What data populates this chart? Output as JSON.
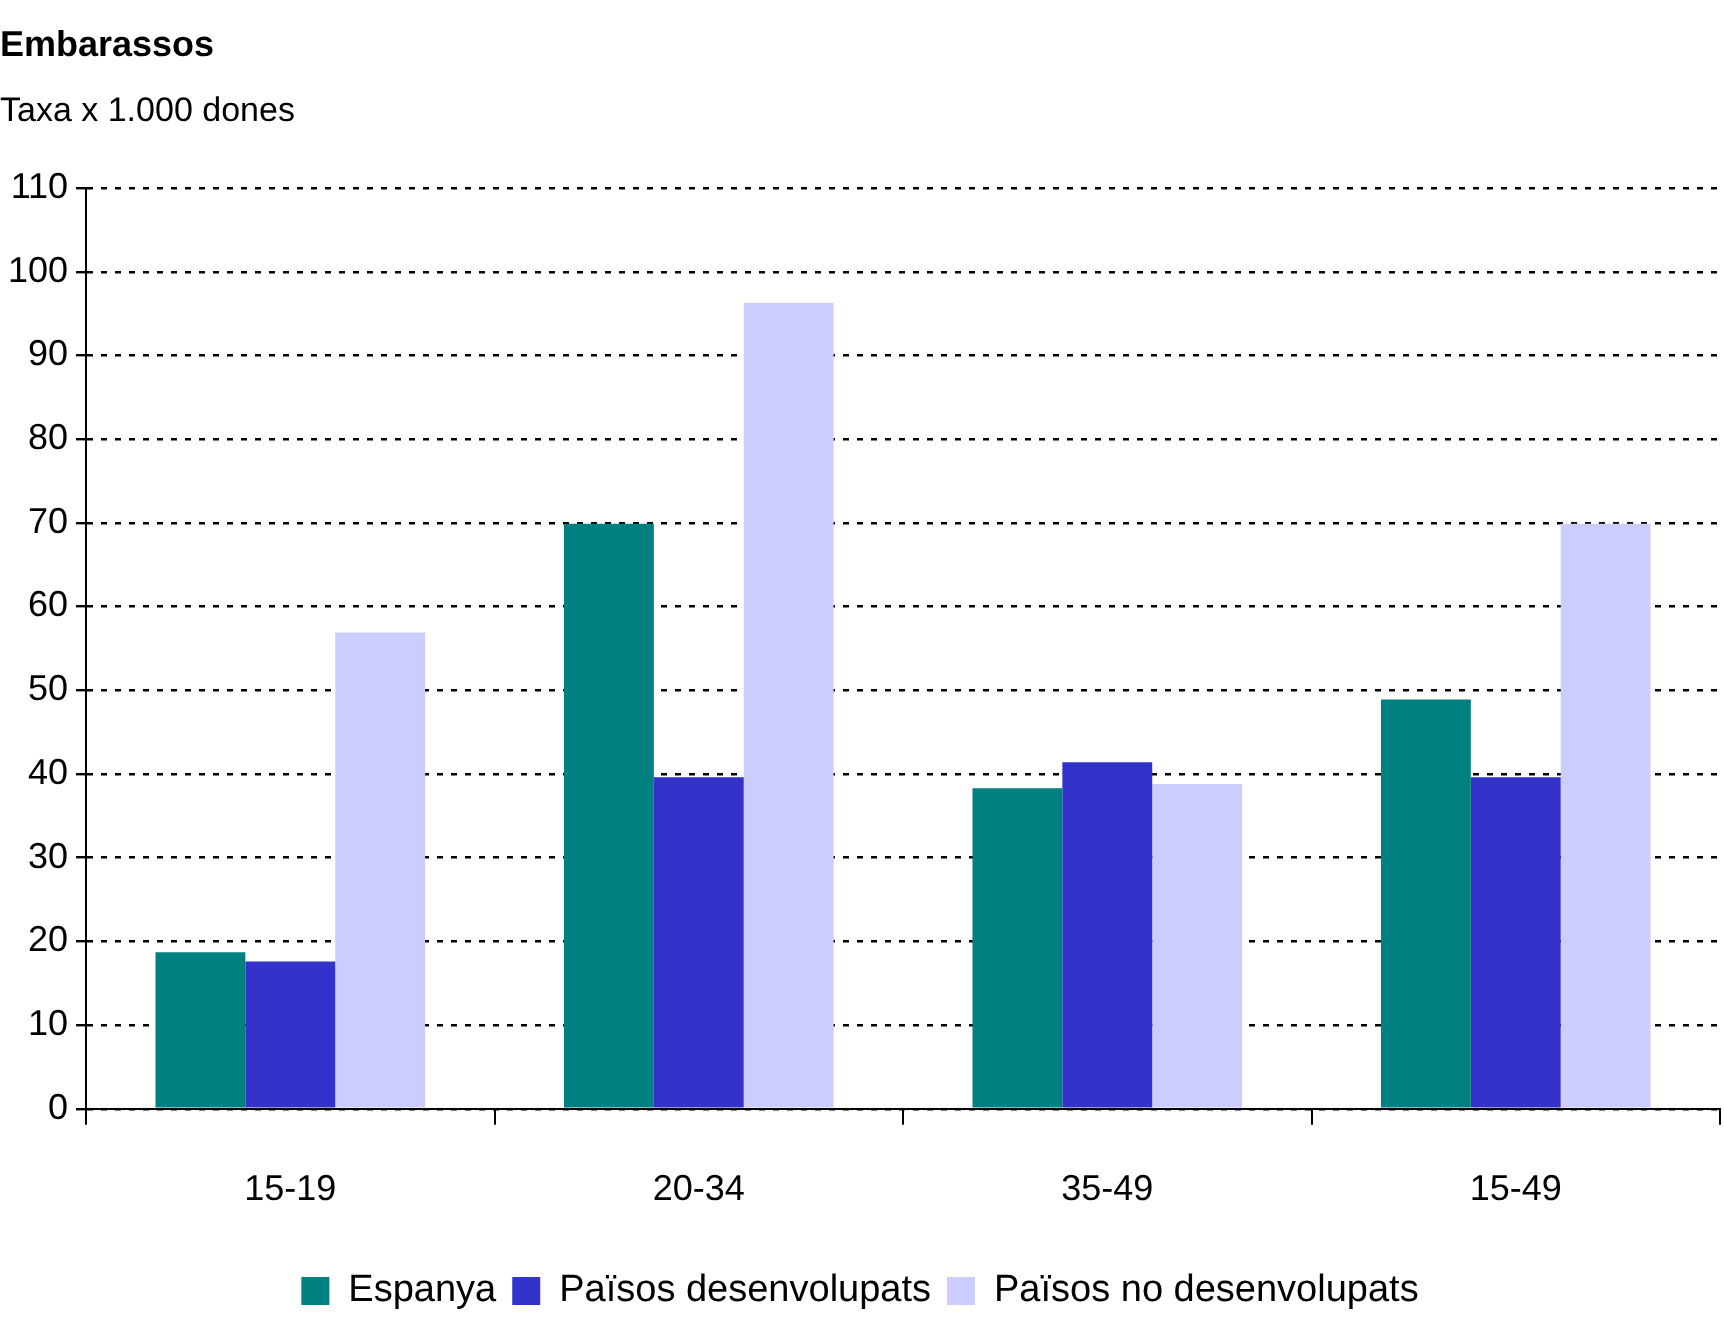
{
  "chart_data": {
    "type": "bar",
    "title": "Embarassos",
    "subtitle": "Taxa x 1.000 dones",
    "categories": [
      "15-19",
      "20-34",
      "35-49",
      "15-49"
    ],
    "series": [
      {
        "name": "Espanya",
        "color": "#008080",
        "values": [
          18.7,
          69.9,
          38.3,
          48.9
        ]
      },
      {
        "name": "Països desenvolupats",
        "color": "#3333cc",
        "values": [
          17.6,
          39.6,
          41.4,
          39.6
        ]
      },
      {
        "name": "Països no desenvolupats",
        "color": "#ccccff",
        "values": [
          56.9,
          96.3,
          38.8,
          69.9
        ]
      }
    ],
    "ylim": [
      0,
      110
    ],
    "yticks": [
      0,
      10,
      20,
      30,
      40,
      50,
      60,
      70,
      80,
      90,
      100,
      110
    ],
    "grid": "y",
    "legend": "bottom"
  }
}
